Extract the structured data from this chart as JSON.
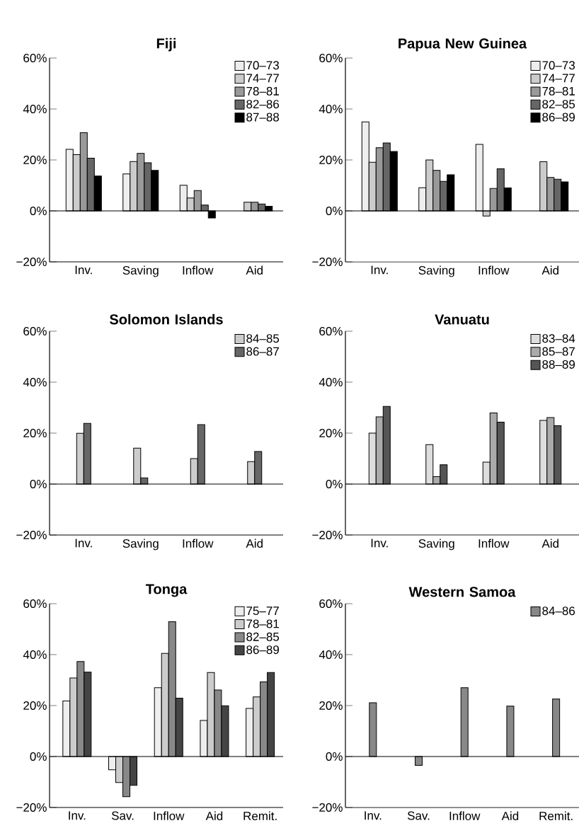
{
  "chart_data": [
    {
      "type": "bar",
      "title": "Fiji",
      "categories": [
        "Inv.",
        "Saving",
        "Inflow",
        "Aid"
      ],
      "ylim": [
        -20,
        60
      ],
      "yticks": [
        {
          "value": -20,
          "label": "−20%"
        },
        {
          "value": 0,
          "label": "0%"
        },
        {
          "value": 20,
          "label": "20%"
        },
        {
          "value": 40,
          "label": "40%"
        },
        {
          "value": 60,
          "label": "60%"
        }
      ],
      "legend": "top right",
      "series": [
        {
          "name": "70–73",
          "color": "#eeeeee",
          "values": [
            24.2,
            14.5,
            10.1,
            null
          ]
        },
        {
          "name": "74–77",
          "color": "#cccccc",
          "values": [
            22.1,
            19.4,
            5.1,
            3.4
          ]
        },
        {
          "name": "78–81",
          "color": "#999999",
          "values": [
            30.7,
            22.6,
            8.0,
            3.4
          ]
        },
        {
          "name": "82–86",
          "color": "#666666",
          "values": [
            20.7,
            18.9,
            2.3,
            2.7
          ]
        },
        {
          "name": "87–88",
          "color": "#000000",
          "values": [
            13.7,
            15.9,
            -2.8,
            1.8
          ]
        }
      ]
    },
    {
      "type": "bar",
      "title": "Papua New Guinea",
      "categories": [
        "Inv.",
        "Saving",
        "Inflow",
        "Aid"
      ],
      "ylim": [
        -20,
        60
      ],
      "yticks": [
        {
          "value": -20,
          "label": "−20%"
        },
        {
          "value": 0,
          "label": "0%"
        },
        {
          "value": 20,
          "label": "20%"
        },
        {
          "value": 40,
          "label": "40%"
        },
        {
          "value": 60,
          "label": "60%"
        }
      ],
      "legend": "top right",
      "series": [
        {
          "name": "70–73",
          "color": "#eeeeee",
          "values": [
            34.9,
            9.1,
            26.1,
            null
          ]
        },
        {
          "name": "74–77",
          "color": "#cccccc",
          "values": [
            19.1,
            20.0,
            -2.0,
            19.3
          ]
        },
        {
          "name": "78–81",
          "color": "#999999",
          "values": [
            24.8,
            15.9,
            8.8,
            13.1
          ]
        },
        {
          "name": "82–85",
          "color": "#666666",
          "values": [
            26.7,
            11.6,
            16.5,
            12.4
          ]
        },
        {
          "name": "86–89",
          "color": "#000000",
          "values": [
            23.3,
            14.2,
            9.0,
            11.4
          ]
        }
      ]
    },
    {
      "type": "bar",
      "title": "Solomon Islands",
      "categories": [
        "Inv.",
        "Saving",
        "Inflow",
        "Aid"
      ],
      "ylim": [
        -20,
        60
      ],
      "yticks": [
        {
          "value": -20,
          "label": "−20%"
        },
        {
          "value": 0,
          "label": "0%"
        },
        {
          "value": 20,
          "label": "20%"
        },
        {
          "value": 40,
          "label": "40%"
        },
        {
          "value": 60,
          "label": "60%"
        }
      ],
      "legend": "top right",
      "series": [
        {
          "name": "84–85",
          "color": "#cccccc",
          "values": [
            19.9,
            14.1,
            10.0,
            8.8
          ]
        },
        {
          "name": "86–87",
          "color": "#666666",
          "values": [
            23.8,
            2.4,
            23.3,
            12.8
          ]
        }
      ]
    },
    {
      "type": "bar",
      "title": "Vanuatu",
      "categories": [
        "Inv.",
        "Saving",
        "Inflow",
        "Aid"
      ],
      "ylim": [
        -20,
        60
      ],
      "yticks": [
        {
          "value": -20,
          "label": "−20%"
        },
        {
          "value": 0,
          "label": "0%"
        },
        {
          "value": 20,
          "label": "20%"
        },
        {
          "value": 40,
          "label": "40%"
        },
        {
          "value": 60,
          "label": "60%"
        }
      ],
      "legend": "top right",
      "series": [
        {
          "name": "83–84",
          "color": "#dddddd",
          "values": [
            20.0,
            15.5,
            8.6,
            25.0
          ]
        },
        {
          "name": "85–87",
          "color": "#aaaaaa",
          "values": [
            26.4,
            2.9,
            27.9,
            26.1
          ]
        },
        {
          "name": "88–89",
          "color": "#555555",
          "values": [
            30.5,
            7.6,
            24.3,
            22.9
          ]
        }
      ]
    },
    {
      "type": "bar",
      "title": "Tonga",
      "categories": [
        "Inv.",
        "Sav.",
        "Inflow",
        "Aid",
        "Remit."
      ],
      "ylim": [
        -20,
        60
      ],
      "yticks": [
        {
          "value": -20,
          "label": "−20%"
        },
        {
          "value": 0,
          "label": "0%"
        },
        {
          "value": 20,
          "label": "20%"
        },
        {
          "value": 40,
          "label": "40%"
        },
        {
          "value": 60,
          "label": "60%"
        }
      ],
      "legend": "top right",
      "series": [
        {
          "name": "75–77",
          "color": "#eeeeee",
          "values": [
            21.8,
            -5.2,
            27.0,
            14.2,
            18.9
          ]
        },
        {
          "name": "78–81",
          "color": "#cccccc",
          "values": [
            30.8,
            -10.2,
            40.5,
            33.0,
            23.4
          ]
        },
        {
          "name": "82–85",
          "color": "#888888",
          "values": [
            37.3,
            -15.8,
            52.9,
            26.1,
            29.3
          ]
        },
        {
          "name": "86–89",
          "color": "#444444",
          "values": [
            33.1,
            -11.3,
            22.9,
            19.9,
            33.0
          ]
        }
      ]
    },
    {
      "type": "bar",
      "title": "Western Samoa",
      "categories": [
        "Inv.",
        "Sav.",
        "Inflow",
        "Aid",
        "Remit."
      ],
      "ylim": [
        -20,
        60
      ],
      "yticks": [
        {
          "value": -20,
          "label": "−20%"
        },
        {
          "value": 0,
          "label": "0%"
        },
        {
          "value": 20,
          "label": "20%"
        },
        {
          "value": 40,
          "label": "40%"
        },
        {
          "value": 60,
          "label": "60%"
        }
      ],
      "legend": "top right",
      "series": [
        {
          "name": "84–86",
          "color": "#888888",
          "values": [
            21.1,
            -3.5,
            27.0,
            19.8,
            22.6
          ]
        }
      ]
    }
  ]
}
